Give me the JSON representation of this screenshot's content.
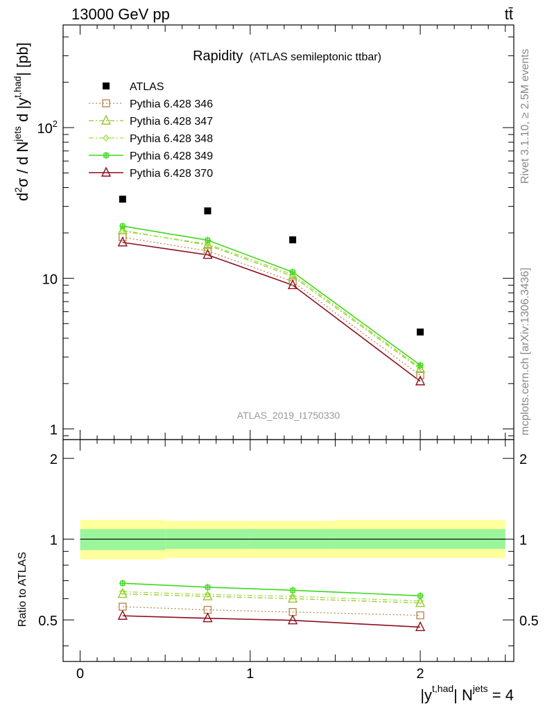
{
  "header": {
    "left": "13000 GeV pp",
    "right": "tt̄"
  },
  "side_text": {
    "rivet": "Rivet 3.1.10, ≥ 2.5M events",
    "mcplots": "mcplots.cern.ch [arXiv:1306.3436]"
  },
  "plot_title": {
    "main": "Rapidity",
    "sub": "(ATLAS semileptonic ttbar)"
  },
  "analysis_id": "ATLAS_2019_I1750330",
  "ylabel_main": {
    "d2": "d",
    "sup2": "2",
    "sigma_d": "σ / d N",
    "sup_jets": "jets",
    "d_y": " d |y",
    "sup_thad": "t,had",
    "unit": "| [pb]"
  },
  "ylabel_ratio": "Ratio to ATLAS",
  "xlabel": {
    "y": "|y",
    "sup_thad": "t,had",
    "n": "| N",
    "sup_jets": "jets",
    "eq": " = 4"
  },
  "colors": {
    "data": "#000000",
    "s346": "#b5894e",
    "s347": "#97c62a",
    "s348": "#9ee03a",
    "s349": "#3ed81c",
    "s370": "#8c0c1c",
    "band_inner": "#9bf59b",
    "band_outer": "#ffff9d"
  },
  "chart_data": [
    {
      "type": "scatter",
      "name": "main",
      "x": [
        0.25,
        0.75,
        1.25,
        2.0
      ],
      "xlim": [
        -0.1,
        2.55
      ],
      "ylim": [
        0.85,
        480
      ],
      "yscale": "log",
      "yticks": [
        {
          "value": 1,
          "label": "1"
        },
        {
          "value": 10,
          "label": "10"
        },
        {
          "value": 100,
          "label": "10",
          "sup": "2"
        }
      ],
      "legend_position": "top-left",
      "series": [
        {
          "name": "ATLAS",
          "key": "data",
          "marker": "filled-square",
          "line": "none",
          "values": [
            33.5,
            28.0,
            18.0,
            4.4
          ]
        },
        {
          "name": "Pythia 6.428 346",
          "key": "s346",
          "marker": "open-square",
          "line": "dotted",
          "values": [
            18.7,
            15.2,
            9.5,
            2.27
          ]
        },
        {
          "name": "Pythia 6.428 347",
          "key": "s347",
          "marker": "open-triangle",
          "line": "dashdot",
          "values": [
            20.8,
            16.6,
            10.3,
            2.5
          ]
        },
        {
          "name": "Pythia 6.428 348",
          "key": "s348",
          "marker": "diamond",
          "line": "dashdot",
          "values": [
            20.5,
            16.9,
            10.6,
            2.55
          ]
        },
        {
          "name": "Pythia 6.428 349",
          "key": "s349",
          "marker": "plus-circle",
          "line": "solid",
          "values": [
            22.2,
            17.9,
            11.0,
            2.65
          ]
        },
        {
          "name": "Pythia 6.428 370",
          "key": "s370",
          "marker": "open-triangle",
          "line": "solid",
          "values": [
            17.3,
            14.3,
            9.0,
            2.07
          ]
        }
      ]
    },
    {
      "type": "line",
      "name": "ratio",
      "x": [
        0.25,
        0.75,
        1.25,
        2.0
      ],
      "xlim": [
        -0.1,
        2.55
      ],
      "ylim": [
        0.35,
        2.35
      ],
      "yscale": "log",
      "xticks": [
        {
          "value": 0,
          "label": "0"
        },
        {
          "value": 1,
          "label": "1"
        },
        {
          "value": 2,
          "label": "2"
        }
      ],
      "yticks": [
        {
          "value": 0.5,
          "label": "0.5"
        },
        {
          "value": 1,
          "label": "1"
        },
        {
          "value": 2,
          "label": "2"
        }
      ],
      "bands": [
        {
          "x_edges": [
            0,
            0.5,
            1.0,
            1.5,
            2.5
          ],
          "inner": [
            [
              0.91,
              1.09
            ],
            [
              0.92,
              1.09
            ],
            [
              0.92,
              1.09
            ],
            [
              0.92,
              1.09
            ]
          ],
          "outer": [
            [
              0.84,
              1.18
            ],
            [
              0.85,
              1.17
            ],
            [
              0.85,
              1.17
            ],
            [
              0.85,
              1.18
            ]
          ]
        }
      ],
      "series": [
        {
          "name": "Pythia 6.428 346",
          "key": "s346",
          "marker": "open-square",
          "line": "dotted",
          "values": [
            0.56,
            0.545,
            0.535,
            0.52
          ]
        },
        {
          "name": "Pythia 6.428 347",
          "key": "s347",
          "marker": "open-triangle",
          "line": "dashdot",
          "values": [
            0.625,
            0.612,
            0.6,
            0.578
          ]
        },
        {
          "name": "Pythia 6.428 348",
          "key": "s348",
          "marker": "diamond",
          "line": "dashdot",
          "values": [
            0.637,
            0.622,
            0.612,
            0.588
          ]
        },
        {
          "name": "Pythia 6.428 349",
          "key": "s349",
          "marker": "plus-circle",
          "line": "solid",
          "values": [
            0.685,
            0.662,
            0.645,
            0.615
          ]
        },
        {
          "name": "Pythia 6.428 370",
          "key": "s370",
          "marker": "open-triangle",
          "line": "solid",
          "values": [
            0.518,
            0.507,
            0.498,
            0.47
          ]
        }
      ]
    }
  ]
}
